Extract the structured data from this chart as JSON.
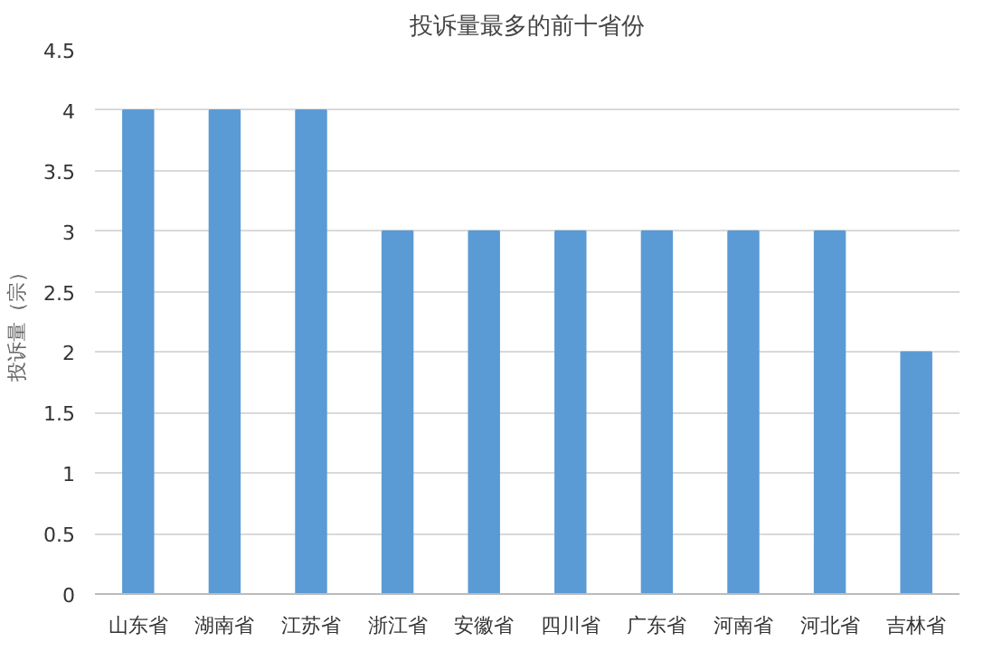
{
  "chart_data": {
    "type": "bar",
    "title": "投诉量最多的前十省份",
    "ylabel": "投诉量（宗）",
    "categories": [
      "山东省",
      "湖南省",
      "江苏省",
      "浙江省",
      "安徽省",
      "四川省",
      "广东省",
      "河南省",
      "河北省",
      "吉林省"
    ],
    "values": [
      4,
      4,
      4,
      3,
      3,
      3,
      3,
      3,
      3,
      2
    ],
    "color": "#5b9bd5",
    "ylim": [
      0,
      4.5
    ],
    "yticks": [
      0,
      0.5,
      1,
      1.5,
      2,
      2.5,
      3,
      3.5,
      4,
      4.5
    ],
    "grid": "y"
  }
}
